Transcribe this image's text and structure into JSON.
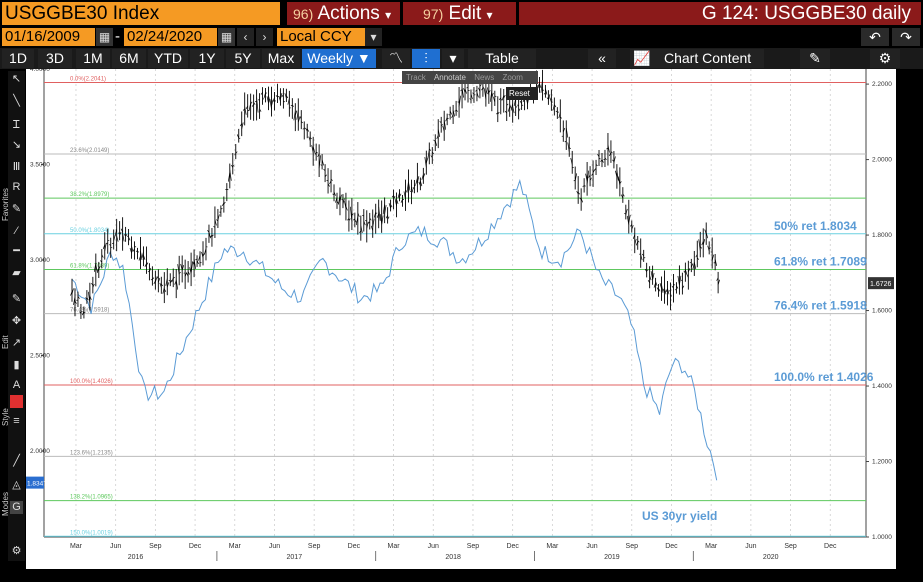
{
  "header": {
    "ticker": "USGGBE30 Index",
    "actions_num": "96)",
    "actions_label": "Actions",
    "actions_arrow": "▾",
    "edit_num": "97)",
    "edit_label": "Edit",
    "edit_arrow": "▾",
    "title": "G 124: USGGBE30 daily"
  },
  "dates": {
    "start": "01/16/2009",
    "sep": "-",
    "end": "02/24/2020",
    "currency": "Local CCY"
  },
  "ranges": [
    {
      "label": "1D"
    },
    {
      "label": "3D"
    },
    {
      "label": "1M"
    },
    {
      "label": "6M"
    },
    {
      "label": "YTD"
    },
    {
      "label": "1Y"
    },
    {
      "label": "5Y"
    },
    {
      "label": "Max"
    },
    {
      "label": "Weekly ▼"
    }
  ],
  "toolbar": {
    "table_label": "Table",
    "chart_content_label": "Chart Content"
  },
  "mini_toolbar": {
    "track": "Track",
    "annotate": "Annotate",
    "news": "News",
    "zoom": "Zoom",
    "reset": "Reset"
  },
  "sidebar_labels": {
    "favorites": "Favorites",
    "edit": "Edit",
    "style": "Style",
    "modes": "Modes"
  },
  "colors": {
    "accent": "#f59a23",
    "header_red": "#8b1a1a",
    "selected": "#1f6fd1",
    "fib_red": "#e06060",
    "fib_green": "#5ec85e",
    "fib_cyan": "#6ad0e0",
    "fib_gray": "#bbbbbb",
    "series_black": "#000000",
    "series_blue": "#5b9bd5",
    "annotation_blue": "#5b9bd5"
  },
  "chart_data": {
    "type": "line",
    "x_tick_labels": [
      "Mar",
      "Jun",
      "Sep",
      "Dec",
      "Mar",
      "Jun",
      "Sep",
      "Dec",
      "Mar",
      "Jun",
      "Sep",
      "Dec",
      "Mar",
      "Jun",
      "Sep",
      "Dec",
      "Mar",
      "Jun",
      "Sep",
      "Dec"
    ],
    "year_labels": [
      "2016",
      "2017",
      "2018",
      "2019",
      "2020"
    ],
    "left_axis": {
      "labels": [
        "4.0000",
        "3.5000",
        "3.0000",
        "2.5000",
        "2.0000"
      ],
      "ylim": [
        1.55,
        4.0
      ]
    },
    "right_axis": {
      "labels": [
        "2.2000",
        "2.0000",
        "1.8000",
        "1.6000",
        "1.4000",
        "1.2000",
        "1.0000"
      ],
      "ylim": [
        1.0,
        2.24
      ]
    },
    "last_value_right": "1.6726",
    "last_value_left": "1.8347",
    "fib_levels": [
      {
        "label": "0.0%(2.2041)",
        "value": 2.2041,
        "color": "#e06060"
      },
      {
        "label": "23.6%(2.0149)",
        "value": 2.0149,
        "color": "#bbbbbb"
      },
      {
        "label": "38.2%(1.8979)",
        "value": 1.8979,
        "color": "#5ec85e"
      },
      {
        "label": "50.0%(1.8034)",
        "value": 1.8034,
        "color": "#6ad0e0"
      },
      {
        "label": "61.8%(1.7089)",
        "value": 1.7089,
        "color": "#5ec85e"
      },
      {
        "label": "76.4%(1.5918)",
        "value": 1.5918,
        "color": "#bbbbbb"
      },
      {
        "label": "100.0%(1.4026)",
        "value": 1.4026,
        "color": "#e06060"
      },
      {
        "label": "123.6%(1.2135)",
        "value": 1.2135,
        "color": "#bbbbbb"
      },
      {
        "label": "138.2%(1.0965)",
        "value": 1.0965,
        "color": "#5ec85e"
      },
      {
        "label": "150.0%(1.0019)",
        "value": 1.0019,
        "color": "#6ad0e0"
      }
    ],
    "annotations": [
      {
        "text": "50% ret 1.8034",
        "value": 1.8034
      },
      {
        "text": "61.8% ret 1.7089",
        "value": 1.7089
      },
      {
        "text": "76.4% ret 1.5918",
        "value": 1.5918
      },
      {
        "text": "100.0% ret 1.4026",
        "value": 1.4026
      },
      {
        "text": "US 30yr yield",
        "value": 1.045
      }
    ],
    "series": [
      {
        "name": "USGGBE30",
        "axis": "right",
        "style": "ohlc-bars",
        "t": [
          0,
          0.3,
          0.8,
          1.3,
          1.8,
          2.3,
          2.8,
          3.3,
          3.8,
          4.3,
          4.8,
          5.3,
          5.8,
          6.3,
          6.8,
          7.3,
          7.8,
          8.3,
          8.8,
          9.3,
          9.8,
          10.3,
          10.8,
          11.3,
          11.8,
          12.3,
          12.8,
          13.2,
          13.6,
          14.0,
          14.5,
          15.0,
          15.5,
          16.0,
          16.3
        ],
        "values": [
          1.64,
          1.6,
          1.76,
          1.81,
          1.74,
          1.66,
          1.7,
          1.76,
          1.86,
          2.12,
          2.16,
          2.17,
          2.1,
          1.98,
          1.88,
          1.83,
          1.85,
          1.9,
          1.95,
          2.08,
          2.17,
          2.19,
          2.14,
          2.16,
          2.19,
          2.12,
          1.9,
          1.99,
          2.02,
          1.85,
          1.7,
          1.64,
          1.7,
          1.8,
          1.67
        ]
      },
      {
        "name": "US 30yr yield",
        "axis": "left",
        "style": "line",
        "t": [
          0,
          0.5,
          1.0,
          1.3,
          1.8,
          2.3,
          2.8,
          3.3,
          3.8,
          4.3,
          4.8,
          5.3,
          5.8,
          6.3,
          6.8,
          7.3,
          7.8,
          8.3,
          8.8,
          9.3,
          9.8,
          10.3,
          10.8,
          11.3,
          11.8,
          12.3,
          12.8,
          13.3,
          13.8,
          14.1,
          14.4,
          14.8,
          15.1,
          15.4,
          15.7,
          16.0,
          16.3
        ],
        "values": [
          2.9,
          2.75,
          3.05,
          2.95,
          2.3,
          2.3,
          2.55,
          2.8,
          3.05,
          3.05,
          2.95,
          2.85,
          2.8,
          3.0,
          2.9,
          2.8,
          2.85,
          3.1,
          3.15,
          3.1,
          3.0,
          3.1,
          3.25,
          3.4,
          3.05,
          3.0,
          3.15,
          2.9,
          2.8,
          2.65,
          2.35,
          2.2,
          2.45,
          2.45,
          2.3,
          2.05,
          1.85
        ]
      }
    ]
  }
}
